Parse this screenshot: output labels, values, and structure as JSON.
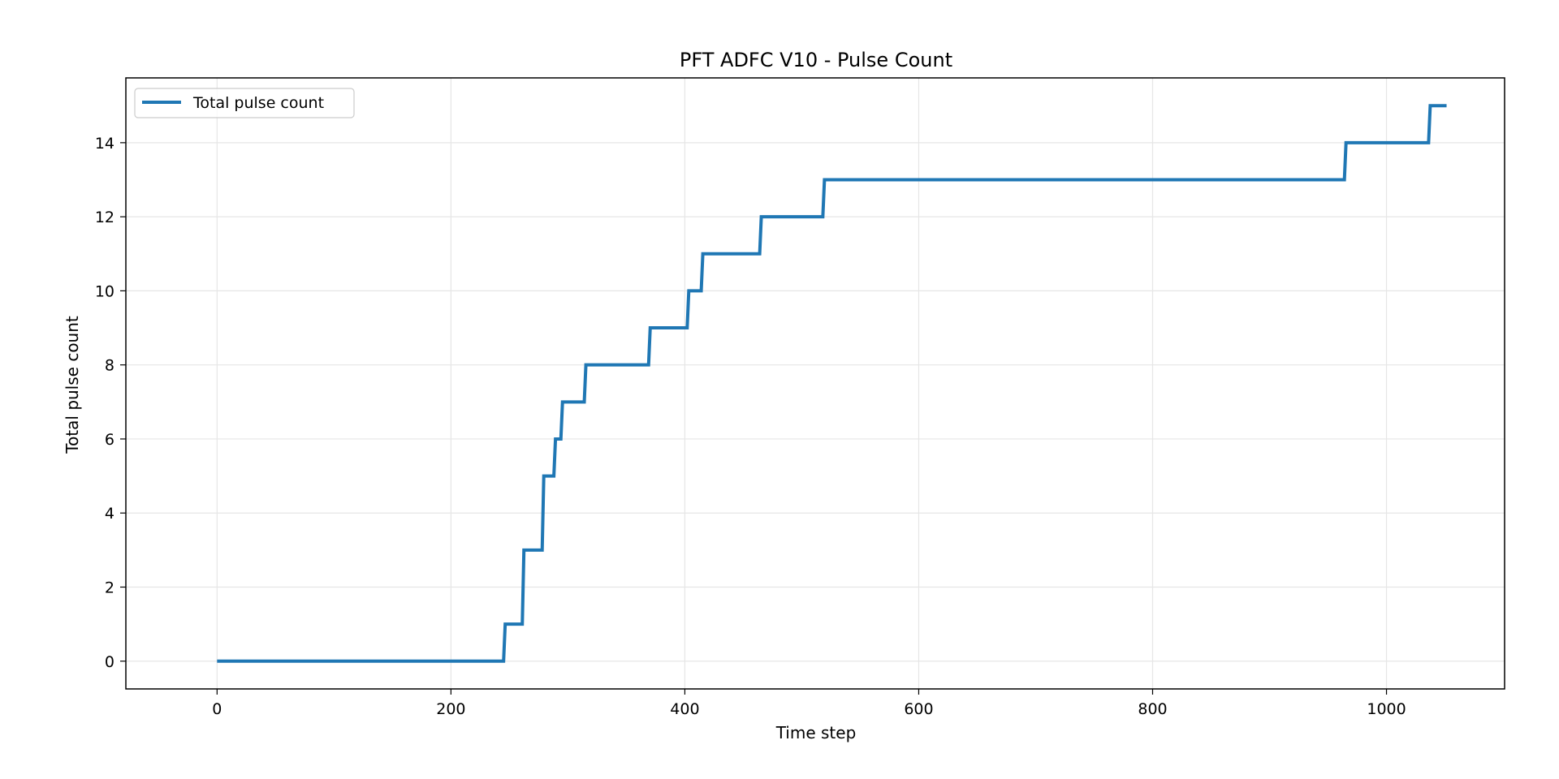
{
  "chart_data": {
    "type": "line",
    "title": "PFT ADFC V10 - Pulse Count",
    "xlabel": "Time step",
    "ylabel": "Total pulse count",
    "xlim": [
      -78,
      1101
    ],
    "ylim": [
      -0.75,
      15.75
    ],
    "x_ticks": [
      0,
      200,
      400,
      600,
      800,
      1000
    ],
    "y_ticks": [
      0,
      2,
      4,
      6,
      8,
      10,
      12,
      14
    ],
    "grid": true,
    "legend_position": "top-left",
    "series": [
      {
        "name": "Total pulse count",
        "color": "#1f77b4",
        "step": "post",
        "x": [
          0,
          245,
          261,
          278,
          288,
          294,
          314,
          369,
          402,
          414,
          464,
          518,
          964,
          1036,
          1050
        ],
        "y": [
          0,
          1,
          3,
          5,
          6,
          7,
          8,
          9,
          10,
          11,
          12,
          13,
          14,
          15,
          15
        ]
      }
    ]
  }
}
